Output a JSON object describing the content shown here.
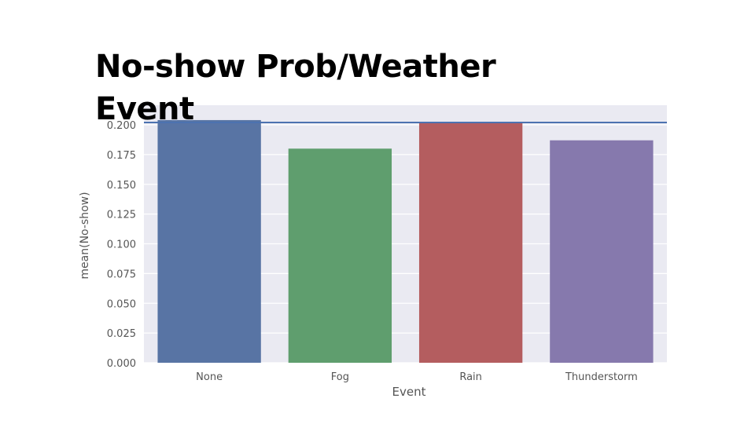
{
  "title": "No-show Prob/Weather Event",
  "chart_data": {
    "type": "bar",
    "categories": [
      "None",
      "Fog",
      "Rain",
      "Thunderstorm"
    ],
    "values": [
      0.204,
      0.18,
      0.202,
      0.187
    ],
    "xlabel": "Event",
    "ylabel": "mean(No-show)",
    "ylim": [
      0,
      0.2
    ],
    "yticks": [
      "0.000",
      "0.025",
      "0.050",
      "0.075",
      "0.100",
      "0.125",
      "0.150",
      "0.175",
      "0.200"
    ],
    "reference_line": 0.202,
    "grid": true,
    "colors": [
      "#5874a4",
      "#5f9e6e",
      "#b45d5f",
      "#8679ad"
    ],
    "reference_line_color": "#4c72b0",
    "background_color": "#eaeaf2"
  }
}
